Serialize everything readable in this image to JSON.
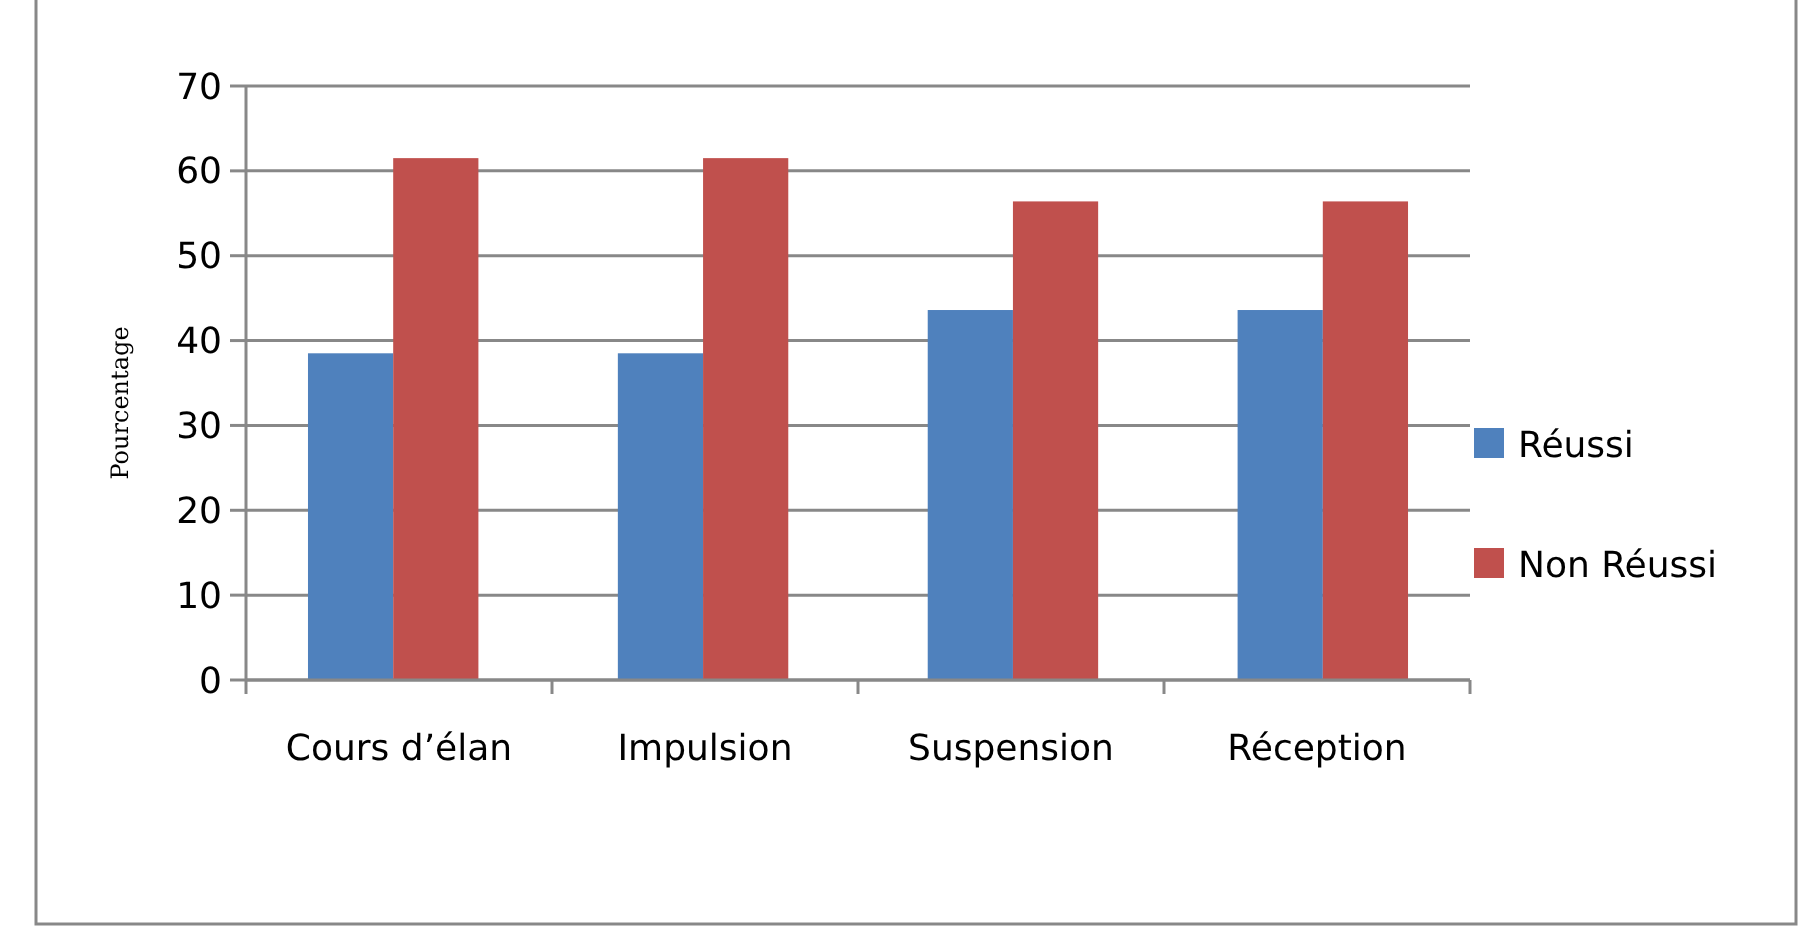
{
  "chart_data": {
    "type": "bar",
    "ylabel": "Pourcentage",
    "categories": [
      "Cours d’élan",
      "Impulsion",
      "Suspension",
      "Réception"
    ],
    "series": [
      {
        "name": "Réussi",
        "color": "#4f81bd",
        "values": [
          38.5,
          38.5,
          43.6,
          43.6
        ]
      },
      {
        "name": "Non Réussi",
        "color": "#c0504d",
        "values": [
          61.5,
          61.5,
          56.4,
          56.4
        ]
      }
    ],
    "ylim": [
      0,
      70
    ],
    "yticks": [
      0,
      10,
      20,
      30,
      40,
      50,
      60,
      70
    ],
    "grid": "y",
    "legend": "right"
  }
}
